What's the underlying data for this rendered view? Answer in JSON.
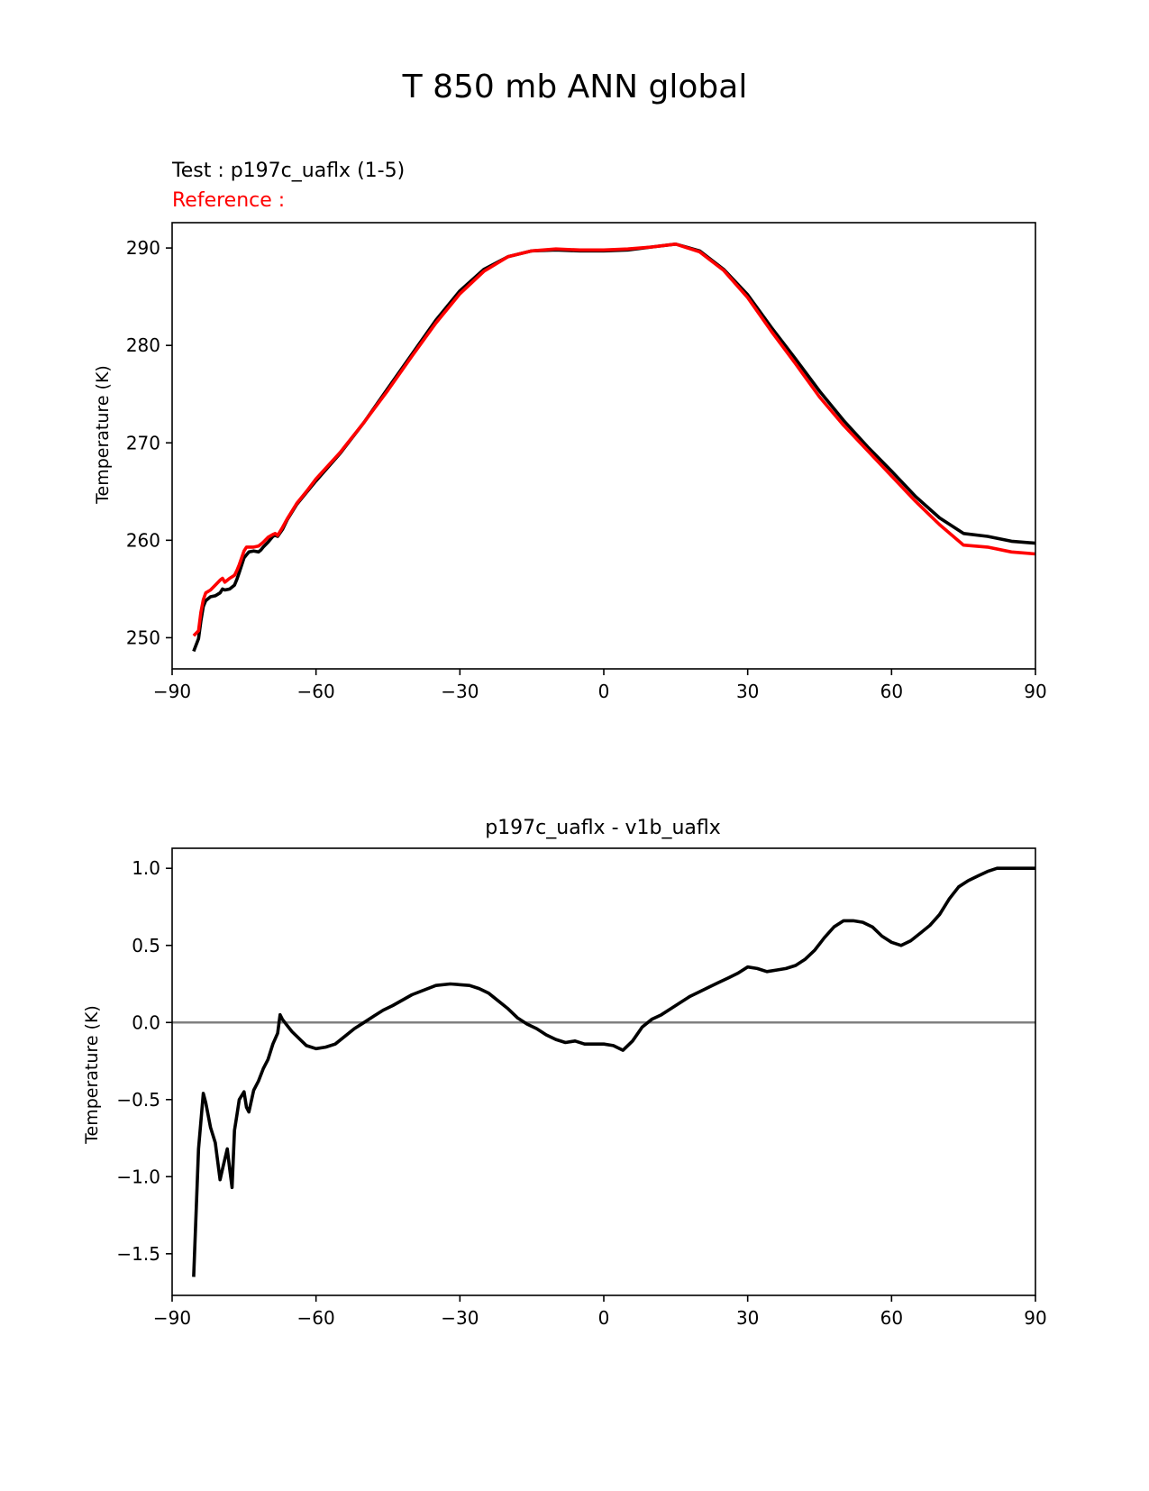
{
  "figure": {
    "title": "T 850 mb ANN global"
  },
  "chart_data": [
    {
      "type": "line",
      "test_label": "Test : p197c_uaflx (1-5)",
      "reference_label": "Reference :",
      "ylabel": "Temperature (K)",
      "xlim": [
        -90,
        90
      ],
      "ylim": [
        246.8,
        292.6
      ],
      "xticks": [
        -90,
        -60,
        -30,
        0,
        30,
        60,
        90
      ],
      "xtick_labels": [
        "−90",
        "−60",
        "−30",
        "0",
        "30",
        "60",
        "90"
      ],
      "yticks": [
        250,
        260,
        270,
        280,
        290
      ],
      "ytick_labels": [
        "250",
        "260",
        "270",
        "280",
        "290"
      ],
      "grid": false,
      "colors": {
        "test": "#000000",
        "reference": "#ff0000"
      },
      "series": [
        {
          "role": "test",
          "x": [
            -85.5,
            -84.5,
            -84,
            -83.5,
            -83,
            -82,
            -81,
            -80,
            -79.5,
            -79,
            -78,
            -77,
            -76.5,
            -76,
            -75,
            -74.5,
            -74,
            -73,
            -72,
            -71.5,
            -71,
            -70,
            -69,
            -68.5,
            -68,
            -67,
            -66,
            -64,
            -62,
            -60,
            -55,
            -50,
            -45,
            -40,
            -35,
            -30,
            -25,
            -20,
            -15,
            -10,
            -5,
            0,
            5,
            10,
            15,
            20,
            25,
            30,
            35,
            40,
            45,
            50,
            55,
            60,
            65,
            70,
            75,
            80,
            85,
            90
          ],
          "y": [
            248.6,
            249.9,
            251.7,
            253.2,
            253.8,
            254.2,
            254.3,
            254.6,
            255.0,
            254.9,
            255.0,
            255.4,
            256.0,
            256.7,
            258.2,
            258.5,
            258.8,
            258.9,
            258.8,
            259.0,
            259.3,
            259.8,
            260.4,
            260.5,
            260.4,
            261.1,
            262.1,
            263.7,
            264.9,
            266.1,
            268.9,
            272.1,
            275.6,
            279.1,
            282.6,
            285.6,
            287.8,
            289.1,
            289.7,
            289.8,
            289.7,
            289.7,
            289.8,
            290.1,
            290.4,
            289.7,
            287.8,
            285.2,
            281.8,
            278.6,
            275.3,
            272.3,
            269.6,
            267.1,
            264.5,
            262.3,
            260.7,
            260.4,
            259.9,
            259.7
          ]
        },
        {
          "role": "reference",
          "x": [
            -85.5,
            -84.5,
            -84,
            -83.5,
            -83,
            -82,
            -81,
            -80,
            -79.5,
            -79,
            -78,
            -77,
            -76.5,
            -76,
            -75,
            -74.5,
            -74,
            -73,
            -72,
            -71.5,
            -71,
            -70,
            -69,
            -68.5,
            -68,
            -67,
            -66,
            -64,
            -62,
            -60,
            -55,
            -50,
            -45,
            -40,
            -35,
            -30,
            -25,
            -20,
            -15,
            -10,
            -5,
            0,
            5,
            10,
            15,
            20,
            25,
            30,
            35,
            40,
            45,
            50,
            55,
            60,
            65,
            70,
            75,
            80,
            85,
            90
          ],
          "y": [
            250.2,
            250.7,
            252.6,
            253.9,
            254.6,
            254.9,
            255.4,
            255.9,
            256.1,
            255.7,
            256.1,
            256.4,
            256.9,
            257.5,
            258.9,
            259.3,
            259.3,
            259.3,
            259.4,
            259.6,
            259.8,
            260.3,
            260.6,
            260.7,
            260.5,
            261.3,
            262.2,
            263.8,
            265.0,
            266.3,
            269.0,
            272.1,
            275.4,
            278.9,
            282.3,
            285.3,
            287.6,
            289.1,
            289.7,
            289.9,
            289.8,
            289.8,
            289.9,
            290.1,
            290.4,
            289.6,
            287.7,
            284.9,
            281.4,
            278.1,
            274.7,
            271.8,
            269.2,
            266.6,
            264.0,
            261.6,
            259.5,
            259.3,
            258.8,
            258.6
          ]
        }
      ]
    },
    {
      "type": "line",
      "title": "p197c_uaflx - v1b_uaflx",
      "ylabel": "Temperature (K)",
      "xlim": [
        -90,
        90
      ],
      "ylim": [
        -1.77,
        1.13
      ],
      "xticks": [
        -90,
        -60,
        -30,
        0,
        30,
        60,
        90
      ],
      "xtick_labels": [
        "−90",
        "−60",
        "−30",
        "0",
        "30",
        "60",
        "90"
      ],
      "yticks": [
        -1.5,
        -1.0,
        -0.5,
        0.0,
        0.5,
        1.0
      ],
      "ytick_labels": [
        "−1.5",
        "−1.0",
        "−0.5",
        "0.0",
        "0.5",
        "1.0"
      ],
      "grid": false,
      "zero_line": {
        "y": 0,
        "color": "#808080"
      },
      "colors": {
        "diff": "#000000"
      },
      "series": [
        {
          "role": "difference",
          "x": [
            -85.5,
            -84.5,
            -83.5,
            -83,
            -82,
            -81,
            -80,
            -79.5,
            -78.5,
            -78,
            -77.5,
            -77,
            -76.5,
            -76,
            -75,
            -74.5,
            -74,
            -73,
            -72,
            -71,
            -70,
            -69,
            -68,
            -67.5,
            -67,
            -66,
            -65,
            -62,
            -60,
            -58,
            -56,
            -54,
            -52,
            -50,
            -48,
            -46,
            -44,
            -40,
            -35,
            -32,
            -28,
            -26,
            -24,
            -22,
            -20,
            -18,
            -16,
            -14,
            -12,
            -10,
            -8,
            -6,
            -4,
            -3,
            -2,
            -1,
            0,
            2,
            4,
            6,
            8,
            10,
            12,
            14,
            16,
            18,
            20,
            22,
            24,
            26,
            28,
            30,
            32,
            34,
            36,
            38,
            40,
            42,
            44,
            46,
            48,
            50,
            52,
            54,
            56,
            58,
            60,
            62,
            64,
            66,
            68,
            70,
            72,
            74,
            76,
            78,
            80,
            82,
            84,
            86,
            88,
            90
          ],
          "y": [
            -1.65,
            -0.82,
            -0.46,
            -0.52,
            -0.68,
            -0.78,
            -1.02,
            -0.95,
            -0.82,
            -0.95,
            -1.07,
            -0.7,
            -0.6,
            -0.5,
            -0.45,
            -0.55,
            -0.58,
            -0.44,
            -0.38,
            -0.3,
            -0.24,
            -0.14,
            -0.07,
            0.05,
            0.02,
            -0.02,
            -0.06,
            -0.15,
            -0.17,
            -0.16,
            -0.14,
            -0.09,
            -0.04,
            0.0,
            0.04,
            0.08,
            0.11,
            0.18,
            0.24,
            0.25,
            0.24,
            0.22,
            0.19,
            0.14,
            0.09,
            0.03,
            -0.01,
            -0.04,
            -0.08,
            -0.11,
            -0.13,
            -0.12,
            -0.14,
            -0.14,
            -0.14,
            -0.14,
            -0.14,
            -0.15,
            -0.18,
            -0.12,
            -0.03,
            0.02,
            0.05,
            0.09,
            0.13,
            0.17,
            0.2,
            0.23,
            0.26,
            0.29,
            0.32,
            0.36,
            0.35,
            0.33,
            0.34,
            0.35,
            0.37,
            0.41,
            0.47,
            0.55,
            0.62,
            0.66,
            0.66,
            0.65,
            0.62,
            0.56,
            0.52,
            0.5,
            0.53,
            0.58,
            0.63,
            0.7,
            0.8,
            0.88,
            0.92,
            0.95,
            0.98,
            1.0,
            1.0,
            1.0,
            1.0,
            1.0
          ]
        }
      ]
    }
  ]
}
